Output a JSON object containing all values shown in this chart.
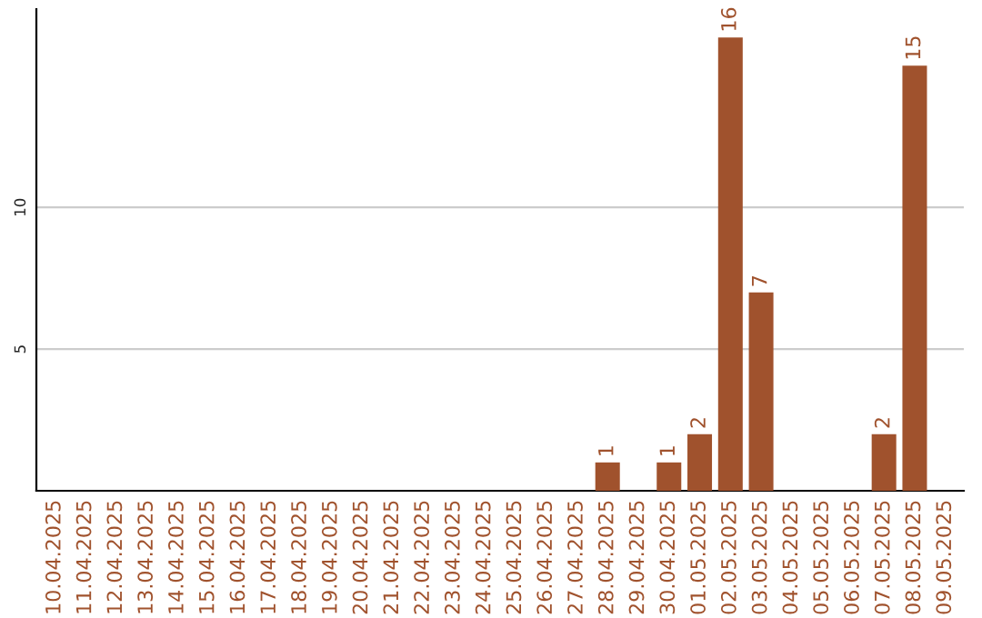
{
  "chart_data": {
    "type": "bar",
    "categories": [
      "10.04.2025",
      "11.04.2025",
      "12.04.2025",
      "13.04.2025",
      "14.04.2025",
      "15.04.2025",
      "16.04.2025",
      "17.04.2025",
      "18.04.2025",
      "19.04.2025",
      "20.04.2025",
      "21.04.2025",
      "22.04.2025",
      "23.04.2025",
      "24.04.2025",
      "25.04.2025",
      "26.04.2025",
      "27.04.2025",
      "28.04.2025",
      "29.04.2025",
      "30.04.2025",
      "01.05.2025",
      "02.05.2025",
      "03.05.2025",
      "04.05.2025",
      "05.05.2025",
      "06.05.2025",
      "07.05.2025",
      "08.05.2025",
      "09.05.2025"
    ],
    "values": [
      0,
      0,
      0,
      0,
      0,
      0,
      0,
      0,
      0,
      0,
      0,
      0,
      0,
      0,
      0,
      0,
      0,
      0,
      1,
      0,
      1,
      2,
      16,
      7,
      0,
      0,
      0,
      2,
      15,
      0
    ],
    "value_labels": [
      null,
      null,
      null,
      null,
      null,
      null,
      null,
      null,
      null,
      null,
      null,
      null,
      null,
      null,
      null,
      null,
      null,
      null,
      "1",
      null,
      "1",
      "2",
      "16",
      "7",
      null,
      null,
      null,
      "2",
      "15",
      null
    ],
    "color": "#a0522d",
    "ylim": [
      0,
      17
    ],
    "yticks": [
      5,
      10
    ],
    "grid": "y"
  }
}
